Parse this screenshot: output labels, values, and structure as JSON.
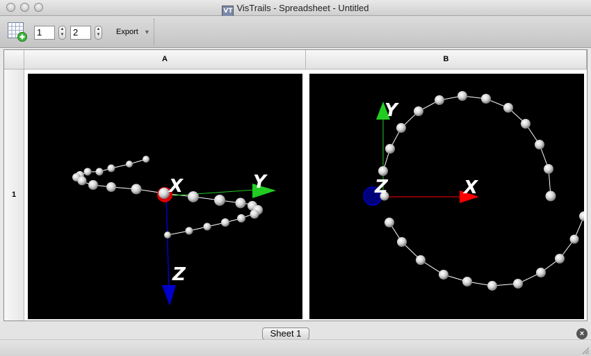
{
  "window": {
    "title": "VisTrails - Spreadsheet - Untitled",
    "app_icon": "VT"
  },
  "toolbar": {
    "rows_value": "1",
    "cols_value": "2",
    "export_label": "Export",
    "export_arrow": "▼"
  },
  "sheet": {
    "columns": [
      {
        "label": "A"
      },
      {
        "label": "B"
      }
    ],
    "rows": [
      {
        "label": "1"
      }
    ]
  },
  "cells": {
    "A": {
      "axes": {
        "x": "X",
        "y": "Y",
        "z": "Z"
      }
    },
    "B": {
      "axes": {
        "x": "X",
        "y": "Y",
        "z": "Z"
      }
    }
  },
  "tabs": {
    "sheet1": "Sheet 1",
    "close_symbol": "×"
  },
  "colors": {
    "x_axis": "#ff0000",
    "y_axis": "#22cc22",
    "z_axis": "#0000cc",
    "background": "#000000"
  },
  "icons": [
    "add-sheet-grid-icon",
    "spin-up-icon",
    "spin-down-icon",
    "dropdown-arrow-icon",
    "close-tab-icon",
    "resize-grip-icon"
  ]
}
